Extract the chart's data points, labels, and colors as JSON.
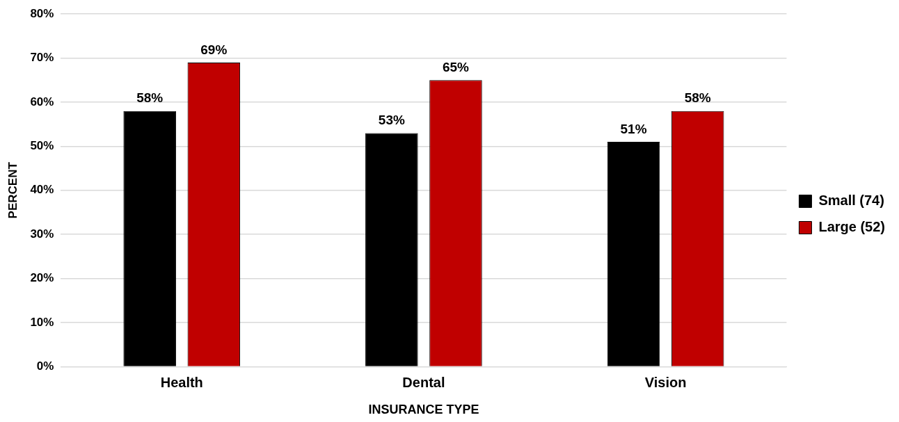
{
  "chart_data": {
    "type": "bar",
    "xlabel": "INSURANCE TYPE",
    "ylabel": "PERCENT",
    "categories": [
      "Health",
      "Dental",
      "Vision"
    ],
    "series": [
      {
        "name": "Small (74)",
        "color": "#000000",
        "values": [
          58,
          53,
          51
        ],
        "value_labels": [
          "58%",
          "53%",
          "51%"
        ]
      },
      {
        "name": "Large (52)",
        "color": "#c00000",
        "values": [
          69,
          65,
          58
        ],
        "value_labels": [
          "69%",
          "65%",
          "58%"
        ]
      }
    ],
    "ylim": [
      0,
      80
    ],
    "yticks": [
      {
        "value": 0,
        "label": "0%"
      },
      {
        "value": 10,
        "label": "10%"
      },
      {
        "value": 20,
        "label": "20%"
      },
      {
        "value": 30,
        "label": "30%"
      },
      {
        "value": 40,
        "label": "40%"
      },
      {
        "value": 50,
        "label": "50%"
      },
      {
        "value": 60,
        "label": "60%"
      },
      {
        "value": 70,
        "label": "70%"
      },
      {
        "value": 80,
        "label": "80%"
      }
    ],
    "grid": "y",
    "legend": "right"
  }
}
